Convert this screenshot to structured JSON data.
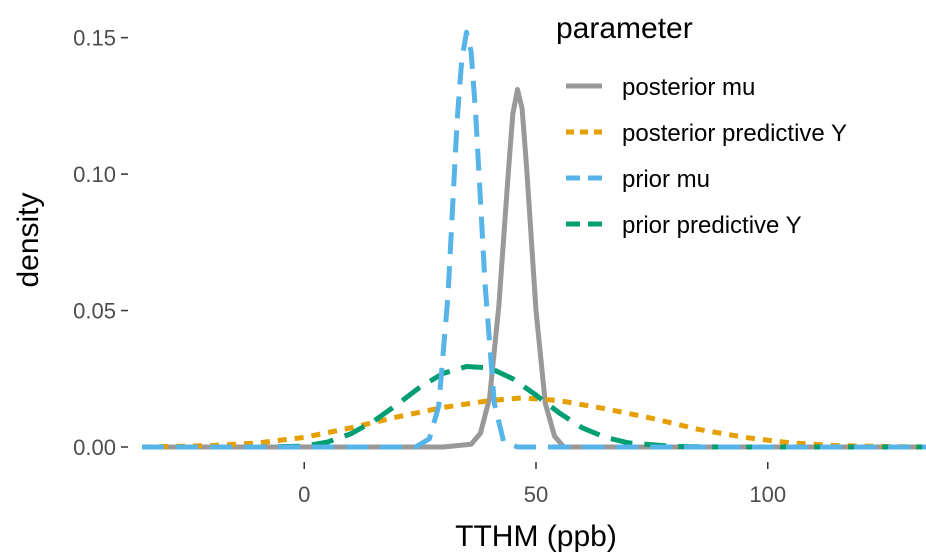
{
  "chart_data": {
    "type": "line",
    "title": "",
    "xlabel": "TTHM (ppb)",
    "ylabel": "density",
    "xlim": [
      -35,
      135
    ],
    "ylim": [
      0,
      0.155
    ],
    "x_ticks": [
      0,
      50,
      100
    ],
    "x_tick_labels": [
      "0",
      "50",
      "100"
    ],
    "y_ticks": [
      0,
      0.05,
      0.1,
      0.15
    ],
    "y_tick_labels": [
      "0.00",
      "0.05",
      "0.10",
      "0.15"
    ],
    "grid": false,
    "legend": {
      "title": "parameter",
      "placement": "top-right"
    },
    "series": [
      {
        "name": "posterior mu",
        "color": "#999999",
        "dash": "solid",
        "x": [
          -35,
          30,
          36,
          38,
          40,
          42,
          44,
          45,
          46,
          47,
          48,
          50,
          52,
          54,
          56,
          135
        ],
        "y": [
          0,
          0,
          0.001,
          0.005,
          0.018,
          0.052,
          0.1,
          0.122,
          0.131,
          0.124,
          0.102,
          0.05,
          0.016,
          0.004,
          0,
          0
        ]
      },
      {
        "name": "posterior predictive Y",
        "color": "#E69F00",
        "dash": "dotted",
        "x": [
          -35,
          -20,
          -10,
          0,
          10,
          20,
          30,
          40,
          47,
          55,
          65,
          75,
          85,
          95,
          105,
          115,
          125,
          135
        ],
        "y": [
          0,
          0.0005,
          0.0015,
          0.0035,
          0.007,
          0.011,
          0.0145,
          0.017,
          0.018,
          0.017,
          0.014,
          0.0105,
          0.0065,
          0.0035,
          0.0015,
          0.0005,
          0.0002,
          0
        ]
      },
      {
        "name": "prior mu",
        "color": "#56B4E9",
        "dash": "dashed",
        "x": [
          -35,
          24,
          27,
          29,
          31,
          33,
          34,
          35,
          36,
          37,
          39,
          41,
          43,
          46,
          135
        ],
        "y": [
          0,
          0,
          0.003,
          0.015,
          0.055,
          0.12,
          0.142,
          0.152,
          0.145,
          0.122,
          0.06,
          0.016,
          0.002,
          0,
          0
        ]
      },
      {
        "name": "prior predictive Y",
        "color": "#009E73",
        "dash": "dashed",
        "x": [
          -35,
          -10,
          0,
          5,
          10,
          15,
          20,
          25,
          30,
          35,
          40,
          45,
          50,
          55,
          60,
          65,
          70,
          80,
          90,
          135
        ],
        "y": [
          0,
          0,
          0.0003,
          0.0018,
          0.0048,
          0.0095,
          0.0155,
          0.022,
          0.027,
          0.0295,
          0.029,
          0.025,
          0.019,
          0.0125,
          0.007,
          0.0035,
          0.0015,
          0.0002,
          0,
          0
        ]
      }
    ]
  }
}
